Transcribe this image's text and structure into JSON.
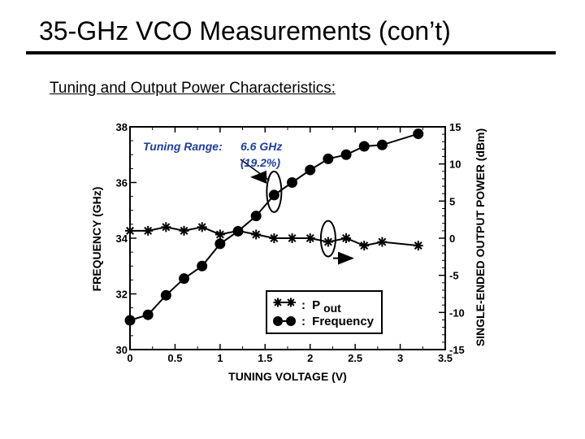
{
  "slide": {
    "title": "35-GHz VCO Measurements (con’t)",
    "subtitle": "Tuning and Output Power Characteristics:"
  },
  "chart_data": {
    "type": "line",
    "xlabel": "TUNING VOLTAGE (V)",
    "ylabel_left": "FREQUENCY (GHz)",
    "ylabel_right": "SINGLE-ENDED OUTPUT POWER (dBm)",
    "xlim": [
      0,
      3.5
    ],
    "ylim_left": [
      30,
      38
    ],
    "ylim_right": [
      -15,
      15
    ],
    "x_ticks": [
      0,
      0.5,
      1,
      1.5,
      2,
      2.5,
      3,
      3.5
    ],
    "x_tick_labels": [
      "0",
      "0.5",
      "1",
      "1.5",
      "2",
      "2.5",
      "3",
      "3.5"
    ],
    "y_left_ticks": [
      30,
      32,
      34,
      36,
      38
    ],
    "y_left_tick_labels": [
      "30",
      "32",
      "34",
      "36",
      "38"
    ],
    "y_right_ticks": [
      -15,
      -10,
      -5,
      0,
      5,
      10,
      15
    ],
    "y_right_tick_labels": [
      "-15",
      "-10",
      "-5",
      "0",
      "5",
      "10",
      "15"
    ],
    "grid": false,
    "legend_placement": "bottom-right",
    "annotation": {
      "line1_label": "Tuning Range:",
      "line1_value": "6.6 GHz",
      "line2": "(19.2%)"
    },
    "series": [
      {
        "name": "Frequency",
        "marker": "circle",
        "axis": "left",
        "x": [
          0,
          0.2,
          0.4,
          0.6,
          0.8,
          1.0,
          1.2,
          1.4,
          1.6,
          1.8,
          2.0,
          2.2,
          2.4,
          2.6,
          2.8,
          3.2
        ],
        "y": [
          31.05,
          31.25,
          31.95,
          32.55,
          33.0,
          33.8,
          34.25,
          34.8,
          35.55,
          36.0,
          36.45,
          36.85,
          37.0,
          37.3,
          37.35,
          37.75
        ]
      },
      {
        "name": "Pout",
        "legend_main": "P",
        "legend_sub": "out",
        "marker": "asterisk",
        "axis": "right",
        "x": [
          0,
          0.2,
          0.4,
          0.6,
          0.8,
          1.0,
          1.2,
          1.4,
          1.6,
          1.8,
          2.0,
          2.2,
          2.4,
          2.6,
          2.8,
          3.2
        ],
        "y": [
          1.0,
          1.0,
          1.5,
          1.0,
          1.5,
          0.5,
          1.0,
          0.5,
          0.0,
          0.0,
          0.0,
          -0.5,
          0.0,
          -1.0,
          -0.5,
          -1.0
        ]
      }
    ],
    "legend_separator": ":"
  }
}
